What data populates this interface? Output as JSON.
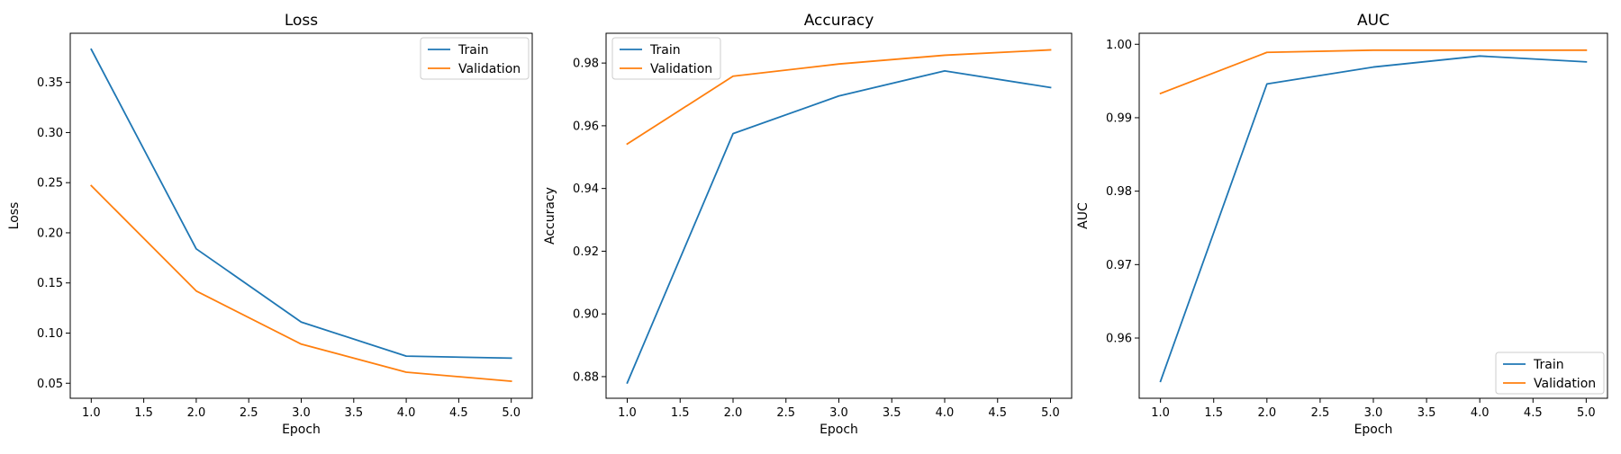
{
  "chart_data": [
    {
      "type": "line",
      "title": "Loss",
      "xlabel": "Epoch",
      "ylabel": "Loss",
      "x": [
        1,
        2,
        3,
        4,
        5
      ],
      "xlim": [
        0.8,
        5.2
      ],
      "ylim": [
        0.035,
        0.399
      ],
      "xticks": [
        "1.0",
        "1.5",
        "2.0",
        "2.5",
        "3.0",
        "3.5",
        "4.0",
        "4.5",
        "5.0"
      ],
      "yticks": [
        "0.05",
        "0.10",
        "0.15",
        "0.20",
        "0.25",
        "0.30",
        "0.35"
      ],
      "legend": "top-right",
      "grid": false,
      "series": [
        {
          "name": "Train",
          "color": "#1f77b4",
          "values": [
            0.383,
            0.184,
            0.111,
            0.077,
            0.075
          ]
        },
        {
          "name": "Validation",
          "color": "#ff7f0e",
          "values": [
            0.247,
            0.142,
            0.089,
            0.061,
            0.052
          ]
        }
      ]
    },
    {
      "type": "line",
      "title": "Accuracy",
      "xlabel": "Epoch",
      "ylabel": "Accuracy",
      "x": [
        1,
        2,
        3,
        4,
        5
      ],
      "xlim": [
        0.8,
        5.2
      ],
      "ylim": [
        0.8731,
        0.9895
      ],
      "xticks": [
        "1.0",
        "1.5",
        "2.0",
        "2.5",
        "3.0",
        "3.5",
        "4.0",
        "4.5",
        "5.0"
      ],
      "yticks": [
        "0.88",
        "0.90",
        "0.92",
        "0.94",
        "0.96",
        "0.98"
      ],
      "legend": "top-left",
      "grid": false,
      "series": [
        {
          "name": "Train",
          "color": "#1f77b4",
          "values": [
            0.878,
            0.9575,
            0.9695,
            0.9775,
            0.9722
          ]
        },
        {
          "name": "Validation",
          "color": "#ff7f0e",
          "values": [
            0.9542,
            0.9758,
            0.9797,
            0.9825,
            0.9842
          ]
        }
      ]
    },
    {
      "type": "line",
      "title": "AUC",
      "xlabel": "Epoch",
      "ylabel": "AUC",
      "x": [
        1,
        2,
        3,
        4,
        5
      ],
      "xlim": [
        0.8,
        5.2
      ],
      "ylim": [
        0.9518,
        1.0015
      ],
      "xticks": [
        "1.0",
        "1.5",
        "2.0",
        "2.5",
        "3.0",
        "3.5",
        "4.0",
        "4.5",
        "5.0"
      ],
      "yticks": [
        "0.96",
        "0.97",
        "0.98",
        "0.99",
        "1.00"
      ],
      "legend": "bottom-right",
      "grid": false,
      "series": [
        {
          "name": "Train",
          "color": "#1f77b4",
          "values": [
            0.9541,
            0.9946,
            0.9969,
            0.9984,
            0.9976
          ]
        },
        {
          "name": "Validation",
          "color": "#ff7f0e",
          "values": [
            0.9933,
            0.9989,
            0.9992,
            0.9992,
            0.9992
          ]
        }
      ]
    }
  ]
}
